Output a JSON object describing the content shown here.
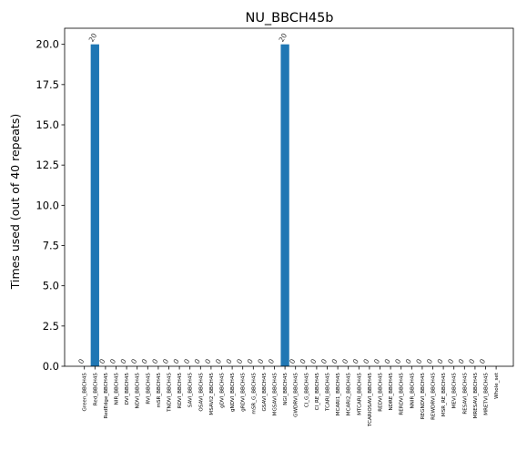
{
  "chart_data": {
    "type": "bar",
    "title": "NU_BBCH45b",
    "xlabel": "",
    "ylabel": "Times used (out of 40 repeats)",
    "ylim": [
      0,
      21
    ],
    "yticks": [
      "0.0",
      "2.5",
      "5.0",
      "7.5",
      "10.0",
      "12.5",
      "15.0",
      "17.5",
      "20.0"
    ],
    "grid": false,
    "bar_color": "#1f77b4",
    "categories": [
      "Green_BBCH45",
      "Red_BBCH45",
      "RedEdge_BBCH45",
      "NIR_BBCH45",
      "DVI_BBCH45",
      "NDVI_BBCH45",
      "RVI_BBCH45",
      "mSR_BBCH45",
      "TNDVI_BBCH45",
      "RDVI_BBCH45",
      "SAVI_BBCH45",
      "OSAVI_BBCH45",
      "MSAVI2_BBCH45",
      "gDVI_BBCH45",
      "gNDVI_BBCH45",
      "gRDVI_BBCH45",
      "mSR_G_BBCH45",
      "GSAVI_BBCH45",
      "MGSAVI_BBCH45",
      "NGI_BBCH45",
      "GWDRVI_BBCH45",
      "CI_G_BBCH45",
      "CI_RE_BBCH45",
      "TCARI_BBCH45",
      "MCARI1_BBCH45",
      "MCARI2_BBCH45",
      "MTCARI_BBCH45",
      "TCARIOSAVI_BBCH45",
      "REDVI_BBCH45",
      "NDRE_BBCH45",
      "RERDVI_BBCH45",
      "NNIR_BBCH45",
      "REGNDVI_BBCH45",
      "REWDRVI_BBCH45",
      "MSR_RE_BBCH45",
      "MEVI_BBCH45",
      "RESAVI_BBCH45",
      "MRESAVI_BBCH45",
      "MRETVI_BBCH45",
      "Whole_set"
    ],
    "values": [
      0,
      20,
      0,
      0,
      0,
      0,
      0,
      0,
      0,
      0,
      0,
      0,
      0,
      0,
      0,
      0,
      0,
      0,
      0,
      20,
      0,
      0,
      0,
      0,
      0,
      0,
      0,
      0,
      0,
      0,
      0,
      0,
      0,
      0,
      0,
      0,
      0,
      0,
      0,
      0
    ],
    "bar_labels": [
      "0",
      "20",
      "0",
      "0",
      "0",
      "0",
      "0",
      "0",
      "0",
      "0",
      "0",
      "0",
      "0",
      "0",
      "0",
      "0",
      "0",
      "0",
      "0",
      "20",
      "0",
      "0",
      "0",
      "0",
      "0",
      "0",
      "0",
      "0",
      "0",
      "0",
      "0",
      "0",
      "0",
      "0",
      "0",
      "0",
      "0",
      "0",
      "0",
      ""
    ]
  }
}
